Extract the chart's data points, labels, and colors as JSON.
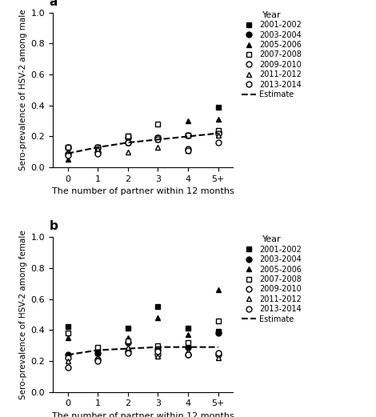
{
  "panel_a": {
    "title": "a",
    "ylabel": "Sero-prevalence of HSV-2 among male",
    "xlabel": "The number of partner within 12 months",
    "ylim": [
      0.0,
      1.0
    ],
    "yticks": [
      0.0,
      0.2,
      0.4,
      0.6,
      0.8,
      1.0
    ],
    "xtick_labels": [
      "0",
      "1",
      "2",
      "3",
      "4",
      "5+"
    ],
    "series": {
      "2001-2002": {
        "marker": "s",
        "filled": true,
        "x": [
          0,
          1,
          2,
          3,
          4,
          5
        ],
        "y": [
          0.13,
          0.13,
          0.2,
          0.19,
          0.21,
          0.39
        ]
      },
      "2003-2004": {
        "marker": "o",
        "filled": true,
        "x": [
          0,
          1,
          2,
          3,
          4,
          5
        ],
        "y": [
          0.13,
          0.13,
          0.19,
          0.19,
          0.21,
          0.23
        ]
      },
      "2005-2006": {
        "marker": "^",
        "filled": true,
        "x": [
          0,
          1,
          2,
          3,
          4,
          5
        ],
        "y": [
          0.05,
          0.12,
          0.16,
          0.18,
          0.3,
          0.31
        ]
      },
      "2007-2008": {
        "marker": "s",
        "filled": false,
        "x": [
          0,
          1,
          2,
          3,
          4,
          5
        ],
        "y": [
          0.13,
          0.13,
          0.2,
          0.28,
          0.21,
          0.24
        ]
      },
      "2009-2010": {
        "marker": "o",
        "filled": false,
        "x": [
          0,
          1,
          2,
          3,
          4,
          5
        ],
        "y": [
          0.09,
          0.1,
          0.16,
          0.19,
          0.12,
          0.22
        ]
      },
      "2011-2012": {
        "marker": "^",
        "filled": false,
        "x": [
          0,
          1,
          2,
          3,
          4,
          5
        ],
        "y": [
          0.09,
          0.12,
          0.1,
          0.13,
          0.11,
          0.21
        ]
      },
      "2013-2014": {
        "marker": "o",
        "filled": false,
        "x": [
          0,
          1,
          2,
          3,
          4,
          5
        ],
        "y": [
          0.08,
          0.09,
          0.16,
          0.18,
          0.11,
          0.16
        ]
      }
    },
    "estimate": {
      "x": [
        0,
        1,
        2,
        3,
        4,
        5
      ],
      "y": [
        0.09,
        0.13,
        0.16,
        0.18,
        0.2,
        0.22
      ]
    }
  },
  "panel_b": {
    "title": "b",
    "ylabel": "Sero-prevalence of HSV-2 among female",
    "xlabel": "The number of partner within 12 months",
    "ylim": [
      0.0,
      1.0
    ],
    "yticks": [
      0.0,
      0.2,
      0.4,
      0.6,
      0.8,
      1.0
    ],
    "xtick_labels": [
      "0",
      "1",
      "2",
      "3",
      "4",
      "5+"
    ],
    "series": {
      "2001-2002": {
        "marker": "s",
        "filled": true,
        "x": [
          0,
          1,
          2,
          3,
          4,
          5
        ],
        "y": [
          0.42,
          0.26,
          0.41,
          0.55,
          0.41,
          0.39
        ]
      },
      "2003-2004": {
        "marker": "o",
        "filled": true,
        "x": [
          0,
          1,
          2,
          3,
          4,
          5
        ],
        "y": [
          0.24,
          0.25,
          0.32,
          0.28,
          0.29,
          0.38
        ]
      },
      "2005-2006": {
        "marker": "^",
        "filled": true,
        "x": [
          0,
          1,
          2,
          3,
          4,
          5
        ],
        "y": [
          0.35,
          0.25,
          0.35,
          0.48,
          0.37,
          0.66
        ]
      },
      "2007-2008": {
        "marker": "s",
        "filled": false,
        "x": [
          0,
          1,
          2,
          3,
          4,
          5
        ],
        "y": [
          0.38,
          0.29,
          0.33,
          0.3,
          0.32,
          0.46
        ]
      },
      "2009-2010": {
        "marker": "o",
        "filled": false,
        "x": [
          0,
          1,
          2,
          3,
          4,
          5
        ],
        "y": [
          0.22,
          0.21,
          0.26,
          0.24,
          0.24,
          0.24
        ]
      },
      "2011-2012": {
        "marker": "^",
        "filled": false,
        "x": [
          0,
          1,
          2,
          3,
          4,
          5
        ],
        "y": [
          0.2,
          0.22,
          0.29,
          0.23,
          0.26,
          0.22
        ]
      },
      "2013-2014": {
        "marker": "o",
        "filled": false,
        "x": [
          0,
          1,
          2,
          3,
          4,
          5
        ],
        "y": [
          0.16,
          0.2,
          0.25,
          0.26,
          0.24,
          0.25
        ]
      }
    },
    "estimate": {
      "x": [
        0,
        1,
        2,
        3,
        4,
        5
      ],
      "y": [
        0.24,
        0.27,
        0.28,
        0.29,
        0.29,
        0.29
      ]
    }
  },
  "marker_map": {
    "2001-2002": {
      "marker": "s",
      "filled": true
    },
    "2003-2004": {
      "marker": "o",
      "filled": true
    },
    "2005-2006": {
      "marker": "^",
      "filled": true
    },
    "2007-2008": {
      "marker": "s",
      "filled": false
    },
    "2009-2010": {
      "marker": "o",
      "filled": false
    },
    "2011-2012": {
      "marker": "^",
      "filled": false
    },
    "2013-2014": {
      "marker": "o",
      "filled": false
    }
  },
  "color": "black",
  "markersize": 5,
  "figsize": [
    4.7,
    5.21
  ],
  "dpi": 100
}
